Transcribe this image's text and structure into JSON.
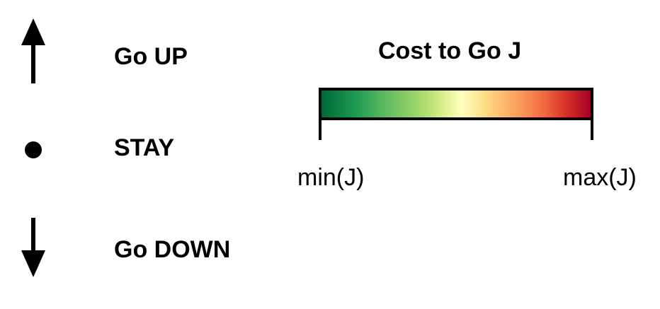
{
  "legend": {
    "actions": [
      {
        "icon": "arrow-up-icon",
        "label": "Go UP"
      },
      {
        "icon": "dot-icon",
        "label": "STAY"
      },
      {
        "icon": "arrow-down-icon",
        "label": "Go DOWN"
      }
    ]
  },
  "colorbar": {
    "title": "Cost to Go J",
    "min_label": "min(J)",
    "max_label": "max(J)",
    "colormap": "RdYlGn_r",
    "colors": {
      "low": "#006837",
      "mid": "#ffffbf",
      "high": "#a50026"
    }
  }
}
